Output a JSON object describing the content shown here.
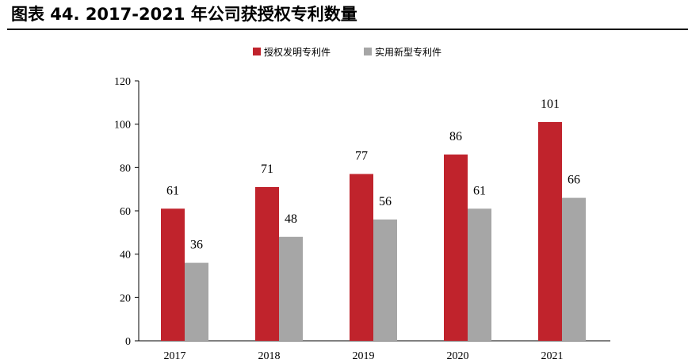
{
  "figure": {
    "title": "图表 44. 2017-2021 年公司获授权专利数量"
  },
  "colors": {
    "series1": "#c0232c",
    "series2": "#a6a6a6",
    "axis": "#000000"
  },
  "chart_data": {
    "type": "bar",
    "categories": [
      "2017",
      "2018",
      "2019",
      "2020",
      "2021"
    ],
    "series": [
      {
        "name": "授权发明专利件",
        "values": [
          61,
          71,
          77,
          86,
          101
        ]
      },
      {
        "name": "实用新型专利件",
        "values": [
          36,
          48,
          56,
          61,
          66
        ]
      }
    ],
    "ylim": [
      0,
      120
    ],
    "yticks": [
      0,
      20,
      40,
      60,
      80,
      100,
      120
    ],
    "legend_position": "top",
    "grid": false,
    "data_labels": true
  }
}
